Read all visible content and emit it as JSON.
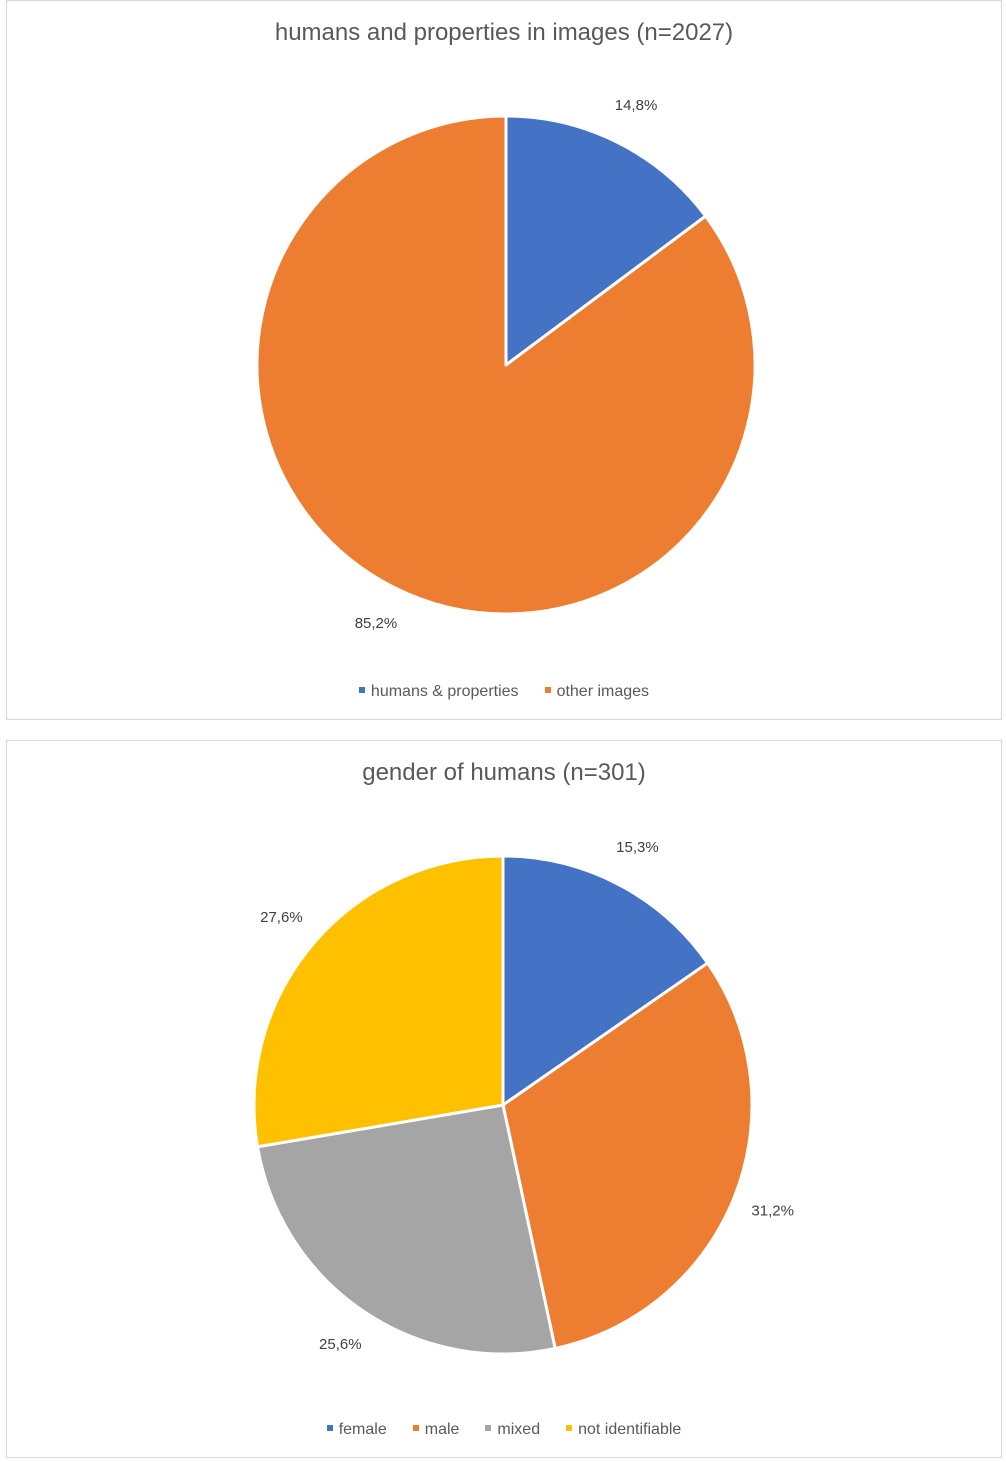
{
  "chart_data": [
    {
      "type": "pie",
      "title": "humans and properties in images (n=2027)",
      "categories": [
        "humans & properties",
        "other images"
      ],
      "values": [
        14.8,
        85.2
      ],
      "data_labels": [
        "14,8%",
        "85,2%"
      ],
      "colors": [
        "#4472c4",
        "#ed7d31"
      ],
      "legend": "bottom"
    },
    {
      "type": "pie",
      "title": "gender of humans (n=301)",
      "categories": [
        "female",
        "male",
        "mixed",
        "not identifiable"
      ],
      "values": [
        15.3,
        31.2,
        25.6,
        27.6
      ],
      "data_labels": [
        "15,3%",
        "31,2%",
        "25,6%",
        "27,6%"
      ],
      "colors": [
        "#4472c4",
        "#ed7d31",
        "#a5a5a5",
        "#ffc000"
      ],
      "legend": "bottom"
    }
  ]
}
